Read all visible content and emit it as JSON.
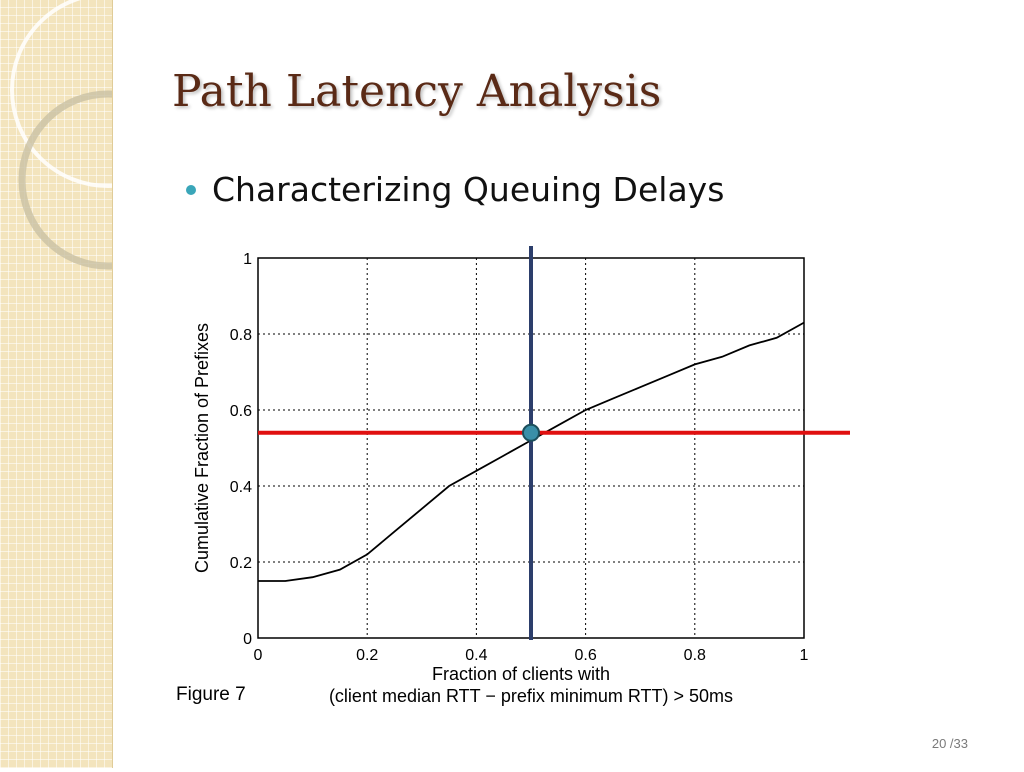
{
  "slide": {
    "title": "Path Latency Analysis",
    "bullet": "Characterizing Queuing Delays",
    "figure_label": "Figure 7",
    "page_number": "20 /33",
    "colors": {
      "title": "#5a2a16",
      "bullet": "#3aa6b9",
      "band": "#f3e4bd"
    }
  },
  "chart_data": {
    "type": "line",
    "title": "",
    "xlabel_line1": "Fraction of clients with",
    "xlabel_line2": "(client median RTT − prefix minimum RTT) > 50ms",
    "ylabel": "Cumulative Fraction of Prefixes",
    "xlim": [
      0,
      1
    ],
    "ylim": [
      0,
      1
    ],
    "x_ticks": [
      "0",
      "0.2",
      "0.4",
      "0.6",
      "0.8",
      "1"
    ],
    "y_ticks": [
      "0",
      "0.2",
      "0.4",
      "0.6",
      "0.8",
      "1"
    ],
    "grid": true,
    "series": [
      {
        "color": "#000000",
        "points": [
          [
            0,
            0.15
          ],
          [
            0.05,
            0.15
          ],
          [
            0.1,
            0.16
          ],
          [
            0.15,
            0.18
          ],
          [
            0.2,
            0.22
          ],
          [
            0.25,
            0.28
          ],
          [
            0.3,
            0.34
          ],
          [
            0.35,
            0.4
          ],
          [
            0.4,
            0.44
          ],
          [
            0.45,
            0.48
          ],
          [
            0.5,
            0.52
          ],
          [
            0.55,
            0.56
          ],
          [
            0.6,
            0.6
          ],
          [
            0.65,
            0.63
          ],
          [
            0.7,
            0.66
          ],
          [
            0.75,
            0.69
          ],
          [
            0.8,
            0.72
          ],
          [
            0.85,
            0.74
          ],
          [
            0.9,
            0.77
          ],
          [
            0.95,
            0.79
          ],
          [
            1.0,
            0.83
          ]
        ]
      }
    ],
    "annotations": {
      "vertical_line_x": 0.5,
      "horizontal_line_y": 0.54,
      "marker": [
        0.5,
        0.54
      ],
      "vertical_color": "#2c3e6b",
      "horizontal_color": "#e01010",
      "marker_color": "#3a8fa8"
    }
  }
}
